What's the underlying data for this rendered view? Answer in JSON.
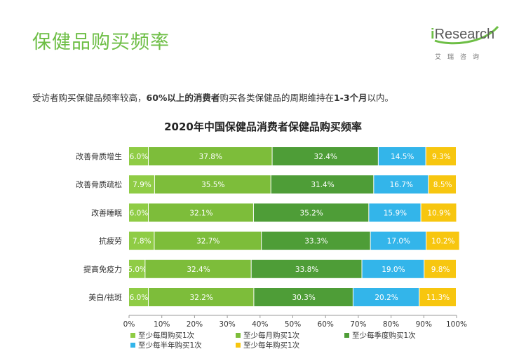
{
  "header": {
    "title": "保健品购买频率",
    "logo_text": "iResearch",
    "logo_sub": "艾瑞咨询"
  },
  "subtitle": {
    "part1": "受访者购买保健品频率较高，",
    "bold1": "60%以上的消费者",
    "part2": "购买各类保健品的周期维持在",
    "bold2": "1-3个月",
    "part3": "以内。"
  },
  "chart_data": {
    "type": "bar",
    "orientation": "horizontal",
    "stacked": true,
    "title": "2020年中国保健品消费者保健品购买频率",
    "categories": [
      "改善骨质增生",
      "改善骨质疏松",
      "改善睡眠",
      "抗疲劳",
      "提高免疫力",
      "美白/祛斑"
    ],
    "series": [
      {
        "name": "至少每周购买1次",
        "color": "#8fcc45",
        "values": [
          6.0,
          7.9,
          6.0,
          7.8,
          5.0,
          6.0
        ],
        "labels": [
          "6.0%",
          "7.9%",
          "6.0%",
          "7.8%",
          "5.0%",
          "6.0%"
        ]
      },
      {
        "name": "至少每月购买1次",
        "color": "#7dbd3a",
        "values": [
          37.8,
          35.5,
          32.1,
          32.7,
          32.4,
          32.2
        ],
        "labels": [
          "37.8%",
          "35.5%",
          "32.1%",
          "32.7%",
          "32.4%",
          "32.2%"
        ]
      },
      {
        "name": "至少每季度购买1次",
        "color": "#4e9d37",
        "values": [
          32.4,
          31.4,
          35.2,
          33.3,
          33.8,
          30.3
        ],
        "labels": [
          "32.4%",
          "31.4%",
          "35.2%",
          "33.3%",
          "33.8%",
          "30.3%"
        ]
      },
      {
        "name": "至少每半年购买1次",
        "color": "#33b5ea",
        "values": [
          14.5,
          16.7,
          15.9,
          17.0,
          19.0,
          20.2
        ],
        "labels": [
          "14.5%",
          "16.7%",
          "15.9%",
          "17.0%",
          "19.0%",
          "20.2%"
        ]
      },
      {
        "name": "至少每年购买1次",
        "color": "#f7c60f",
        "values": [
          9.3,
          8.5,
          10.9,
          10.2,
          9.8,
          11.3
        ],
        "labels": [
          "9.3%",
          "8.5%",
          "10.9%",
          "10.2%",
          "9.8%",
          "11.3%"
        ]
      }
    ],
    "x_ticks": [
      "0%",
      "10%",
      "20%",
      "30%",
      "40%",
      "50%",
      "60%",
      "70%",
      "80%",
      "90%",
      "100%"
    ],
    "xlim": [
      0,
      100
    ],
    "legend_position": "bottom",
    "grid": false
  }
}
